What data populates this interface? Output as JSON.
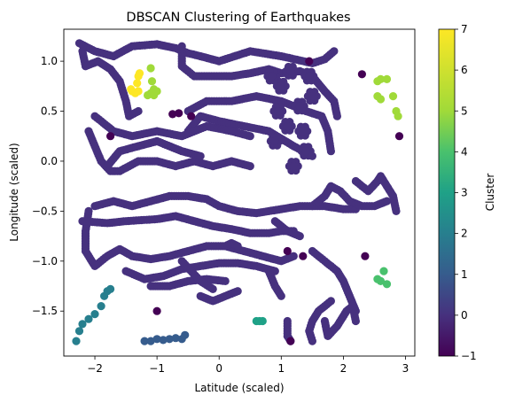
{
  "chart_data": {
    "type": "scatter",
    "title": "DBSCAN Clustering of Earthquakes",
    "xlabel": "Latitude (scaled)",
    "ylabel": "Longitude (scaled)",
    "xlim": [
      -2.5,
      3.15
    ],
    "ylim": [
      -1.95,
      1.32
    ],
    "xticks": [
      -2,
      -1,
      0,
      1,
      2,
      3
    ],
    "yticks": [
      -1.5,
      -1.0,
      -0.5,
      0.0,
      0.5,
      1.0
    ],
    "ytick_labels": [
      "-1.5",
      "-1.0",
      "-0.5",
      "0.0",
      "0.5",
      "1.0"
    ],
    "grid": false,
    "colorbar": {
      "label": "Cluster",
      "colormap": "viridis",
      "range": [
        -1,
        7
      ],
      "ticks": [
        -1,
        0,
        1,
        2,
        3,
        4,
        5,
        6,
        7
      ]
    },
    "cluster_colors": {
      "-1": "#440154",
      "0": "#46317e",
      "1": "#365c8d",
      "2": "#277f8e",
      "3": "#1fa187",
      "4": "#49c16d",
      "5": "#a0da39",
      "6": "#fde725"
    },
    "clusters": [
      {
        "cluster": 0,
        "paths": [
          [
            [
              -2.25,
              1.18
            ],
            [
              -2.0,
              1.1
            ],
            [
              -1.7,
              1.05
            ],
            [
              -1.4,
              1.15
            ],
            [
              -1.0,
              1.17
            ],
            [
              -0.7,
              1.13
            ],
            [
              -0.5,
              1.08
            ],
            [
              -0.3,
              1.05
            ],
            [
              0.0,
              1.0
            ],
            [
              0.5,
              1.1
            ],
            [
              1.0,
              1.05
            ],
            [
              1.5,
              0.98
            ],
            [
              1.7,
              1.02
            ],
            [
              1.85,
              1.1
            ]
          ],
          [
            [
              -2.2,
              1.1
            ],
            [
              -2.15,
              0.95
            ],
            [
              -1.95,
              1.0
            ],
            [
              -1.75,
              0.92
            ],
            [
              -1.6,
              0.8
            ],
            [
              -1.5,
              0.6
            ],
            [
              -1.45,
              0.45
            ],
            [
              -1.3,
              0.5
            ]
          ],
          [
            [
              -0.6,
              1.15
            ],
            [
              -0.6,
              0.95
            ],
            [
              -0.4,
              0.85
            ],
            [
              -0.2,
              0.85
            ],
            [
              0.2,
              0.85
            ],
            [
              0.5,
              0.88
            ],
            [
              0.8,
              0.92
            ],
            [
              1.0,
              0.88
            ],
            [
              1.3,
              0.9
            ],
            [
              1.5,
              0.85
            ],
            [
              1.7,
              0.7
            ],
            [
              1.85,
              0.6
            ],
            [
              1.9,
              0.45
            ]
          ],
          [
            [
              -0.5,
              0.5
            ],
            [
              -0.2,
              0.6
            ],
            [
              0.2,
              0.6
            ],
            [
              0.6,
              0.65
            ],
            [
              1.0,
              0.6
            ],
            [
              1.4,
              0.5
            ],
            [
              1.65,
              0.45
            ],
            [
              1.75,
              0.3
            ],
            [
              1.8,
              0.1
            ]
          ],
          [
            [
              -0.5,
              0.3
            ],
            [
              -0.3,
              0.45
            ],
            [
              0.0,
              0.4
            ],
            [
              0.4,
              0.35
            ],
            [
              0.8,
              0.3
            ],
            [
              1.2,
              0.15
            ],
            [
              1.5,
              0.05
            ]
          ],
          [
            [
              -2.0,
              0.45
            ],
            [
              -1.7,
              0.3
            ],
            [
              -1.4,
              0.25
            ],
            [
              -1.0,
              0.3
            ],
            [
              -0.6,
              0.25
            ],
            [
              -0.2,
              0.35
            ],
            [
              0.2,
              0.3
            ],
            [
              0.5,
              0.25
            ]
          ],
          [
            [
              -2.1,
              0.3
            ],
            [
              -2.0,
              0.15
            ],
            [
              -1.9,
              0.0
            ],
            [
              -1.75,
              -0.1
            ],
            [
              -1.6,
              -0.1
            ],
            [
              -1.3,
              0.0
            ],
            [
              -1.0,
              0.0
            ],
            [
              -0.7,
              -0.05
            ],
            [
              -0.4,
              0.0
            ],
            [
              -0.1,
              -0.05
            ],
            [
              0.2,
              0.0
            ],
            [
              0.5,
              -0.05
            ]
          ],
          [
            [
              -1.8,
              -0.05
            ],
            [
              -1.6,
              0.1
            ],
            [
              -1.3,
              0.15
            ],
            [
              -1.0,
              0.2
            ],
            [
              -0.6,
              0.1
            ],
            [
              -0.3,
              0.05
            ]
          ],
          [
            [
              -2.0,
              -0.45
            ],
            [
              -1.7,
              -0.4
            ],
            [
              -1.4,
              -0.45
            ],
            [
              -1.1,
              -0.4
            ],
            [
              -0.8,
              -0.35
            ],
            [
              -0.5,
              -0.35
            ],
            [
              -0.2,
              -0.38
            ],
            [
              0.0,
              -0.45
            ],
            [
              0.3,
              -0.5
            ],
            [
              0.6,
              -0.52
            ],
            [
              1.0,
              -0.48
            ],
            [
              1.3,
              -0.45
            ],
            [
              1.7,
              -0.45
            ],
            [
              2.0,
              -0.48
            ],
            [
              2.2,
              -0.48
            ]
          ],
          [
            [
              -2.1,
              -0.5
            ],
            [
              -2.15,
              -0.7
            ],
            [
              -2.15,
              -0.9
            ],
            [
              -2.0,
              -1.05
            ],
            [
              -1.8,
              -0.95
            ],
            [
              -1.6,
              -0.88
            ],
            [
              -1.4,
              -0.95
            ],
            [
              -1.1,
              -0.98
            ],
            [
              -0.8,
              -0.95
            ],
            [
              -0.5,
              -0.9
            ],
            [
              -0.2,
              -0.85
            ],
            [
              0.1,
              -0.85
            ],
            [
              0.4,
              -0.9
            ],
            [
              0.7,
              -0.95
            ],
            [
              1.0,
              -1.0
            ],
            [
              1.2,
              -0.95
            ]
          ],
          [
            [
              -2.2,
              -0.6
            ],
            [
              -1.8,
              -0.62
            ],
            [
              -1.5,
              -0.6
            ],
            [
              -1.0,
              -0.58
            ],
            [
              -0.7,
              -0.55
            ],
            [
              -0.4,
              -0.6
            ],
            [
              -0.1,
              -0.65
            ],
            [
              0.2,
              -0.68
            ],
            [
              0.5,
              -0.72
            ],
            [
              0.8,
              -0.72
            ],
            [
              1.0,
              -0.7
            ],
            [
              1.2,
              -0.7
            ]
          ],
          [
            [
              -1.5,
              -1.1
            ],
            [
              -1.2,
              -1.18
            ],
            [
              -0.9,
              -1.15
            ],
            [
              -0.6,
              -1.08
            ],
            [
              -0.3,
              -1.05
            ],
            [
              0.0,
              -1.02
            ],
            [
              0.3,
              -1.02
            ],
            [
              0.6,
              -1.05
            ],
            [
              0.9,
              -1.1
            ]
          ],
          [
            [
              -1.1,
              -1.25
            ],
            [
              -0.8,
              -1.25
            ],
            [
              -0.5,
              -1.2
            ],
            [
              -0.2,
              -1.18
            ],
            [
              0.1,
              -1.2
            ]
          ],
          [
            [
              -0.6,
              -1.0
            ],
            [
              -0.3,
              -1.2
            ],
            [
              -0.1,
              -1.28
            ]
          ],
          [
            [
              0.1,
              -0.85
            ],
            [
              0.2,
              -0.82
            ],
            [
              0.3,
              -0.85
            ]
          ],
          [
            [
              1.5,
              -0.45
            ],
            [
              1.7,
              -0.35
            ],
            [
              1.8,
              -0.25
            ],
            [
              1.95,
              -0.3
            ],
            [
              2.1,
              -0.4
            ],
            [
              2.3,
              -0.45
            ],
            [
              2.5,
              -0.45
            ],
            [
              2.7,
              -0.4
            ]
          ],
          [
            [
              2.2,
              -0.2
            ],
            [
              2.4,
              -0.3
            ],
            [
              2.55,
              -0.2
            ],
            [
              2.6,
              -0.15
            ],
            [
              2.7,
              -0.25
            ],
            [
              2.8,
              -0.35
            ],
            [
              2.85,
              -0.5
            ]
          ],
          [
            [
              1.5,
              -0.9
            ],
            [
              1.7,
              -1.0
            ],
            [
              1.9,
              -1.1
            ],
            [
              2.0,
              -1.2
            ],
            [
              2.1,
              -1.35
            ],
            [
              2.2,
              -1.5
            ]
          ],
          [
            [
              1.8,
              -1.4
            ],
            [
              1.6,
              -1.5
            ],
            [
              1.5,
              -1.6
            ],
            [
              1.45,
              -1.7
            ],
            [
              1.5,
              -1.8
            ]
          ],
          [
            [
              1.7,
              -1.6
            ],
            [
              1.75,
              -1.75
            ],
            [
              1.9,
              -1.65
            ],
            [
              2.05,
              -1.5
            ],
            [
              2.15,
              -1.45
            ],
            [
              2.2,
              -1.6
            ]
          ],
          [
            [
              1.1,
              -1.6
            ],
            [
              1.1,
              -1.75
            ],
            [
              1.15,
              -1.8
            ]
          ],
          [
            [
              0.9,
              -0.6
            ],
            [
              1.1,
              -0.7
            ],
            [
              1.3,
              -0.75
            ]
          ],
          [
            [
              0.8,
              -1.1
            ],
            [
              0.9,
              -1.25
            ],
            [
              1.0,
              -1.35
            ]
          ],
          [
            [
              -0.3,
              -1.35
            ],
            [
              -0.1,
              -1.4
            ],
            [
              0.1,
              -1.35
            ],
            [
              0.3,
              -1.3
            ]
          ]
        ]
      },
      {
        "cluster": 0,
        "blob": [
          [
            1.0,
            0.75
          ],
          [
            1.3,
            0.55
          ],
          [
            1.1,
            0.35
          ],
          [
            0.9,
            0.2
          ],
          [
            1.4,
            0.1
          ],
          [
            1.2,
            -0.05
          ],
          [
            0.95,
            0.5
          ],
          [
            1.35,
            0.3
          ],
          [
            1.5,
            0.65
          ],
          [
            1.15,
            0.9
          ],
          [
            0.85,
            0.85
          ],
          [
            1.45,
            0.85
          ]
        ]
      },
      {
        "cluster": 1,
        "points": [
          [
            -1.2,
            -1.8
          ],
          [
            -1.1,
            -1.8
          ],
          [
            -1.0,
            -1.78
          ],
          [
            -0.9,
            -1.79
          ],
          [
            -0.8,
            -1.78
          ],
          [
            -0.7,
            -1.77
          ],
          [
            -0.6,
            -1.78
          ],
          [
            -0.55,
            -1.74
          ]
        ]
      },
      {
        "cluster": 2,
        "points": [
          [
            -2.3,
            -1.8
          ],
          [
            -2.25,
            -1.7
          ],
          [
            -2.2,
            -1.63
          ],
          [
            -2.1,
            -1.58
          ],
          [
            -2.0,
            -1.53
          ],
          [
            -1.9,
            -1.45
          ],
          [
            -1.85,
            -1.35
          ],
          [
            -1.8,
            -1.3
          ],
          [
            -1.75,
            -1.28
          ]
        ]
      },
      {
        "cluster": 3,
        "points": [
          [
            0.6,
            -1.6
          ],
          [
            0.65,
            -1.6
          ],
          [
            0.7,
            -1.6
          ]
        ]
      },
      {
        "cluster": 4,
        "points": [
          [
            2.55,
            -1.18
          ],
          [
            2.65,
            -1.1
          ],
          [
            2.7,
            -1.23
          ],
          [
            2.6,
            -1.2
          ]
        ]
      },
      {
        "cluster": 5,
        "points": [
          [
            2.55,
            0.8
          ],
          [
            2.6,
            0.82
          ],
          [
            2.7,
            0.82
          ],
          [
            2.55,
            0.65
          ],
          [
            2.6,
            0.62
          ],
          [
            2.8,
            0.65
          ],
          [
            2.85,
            0.5
          ],
          [
            2.88,
            0.45
          ]
        ]
      },
      {
        "cluster": 5,
        "points": [
          [
            -1.1,
            0.93
          ],
          [
            -1.05,
            0.72
          ],
          [
            -1.1,
            0.68
          ],
          [
            -1.15,
            0.66
          ],
          [
            -1.05,
            0.66
          ],
          [
            -1.0,
            0.7
          ],
          [
            -1.08,
            0.8
          ]
        ]
      },
      {
        "cluster": 6,
        "points": [
          [
            -1.4,
            0.7
          ],
          [
            -1.35,
            0.68
          ],
          [
            -1.3,
            0.7
          ],
          [
            -1.32,
            0.78
          ],
          [
            -1.3,
            0.85
          ],
          [
            -1.28,
            0.88
          ],
          [
            -1.42,
            0.72
          ]
        ]
      },
      {
        "cluster": -1,
        "points": [
          [
            -1.75,
            0.25
          ],
          [
            -0.75,
            0.47
          ],
          [
            -0.65,
            0.48
          ],
          [
            -1.0,
            -1.5
          ],
          [
            1.1,
            -0.9
          ],
          [
            1.35,
            -0.95
          ],
          [
            1.15,
            -1.8
          ],
          [
            2.3,
            0.87
          ],
          [
            2.35,
            -0.95
          ],
          [
            2.9,
            0.25
          ],
          [
            -0.45,
            0.45
          ],
          [
            1.45,
            1.0
          ]
        ]
      }
    ]
  }
}
